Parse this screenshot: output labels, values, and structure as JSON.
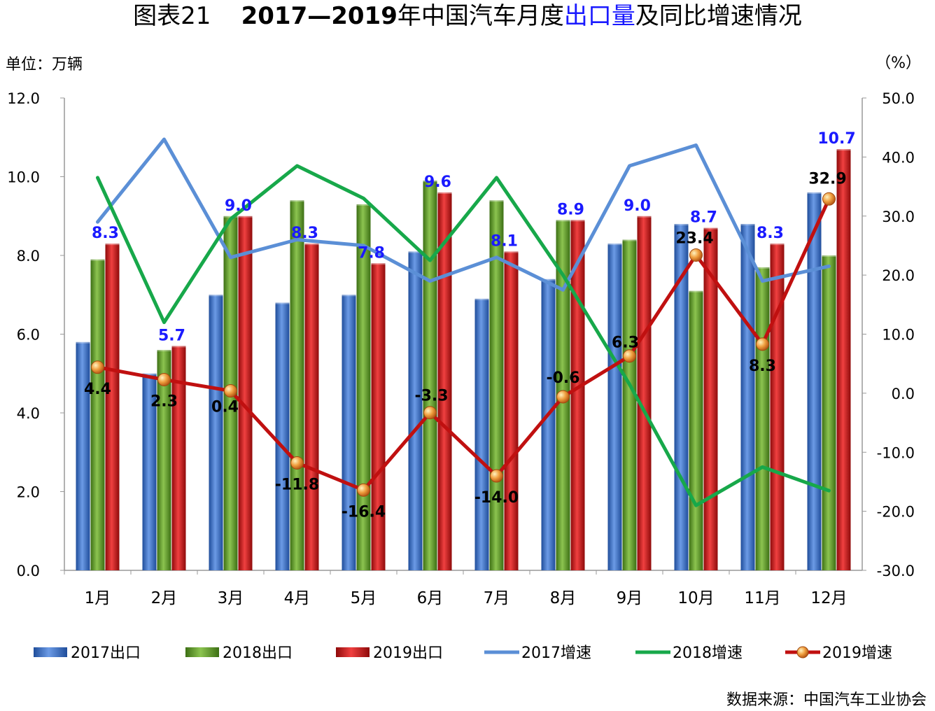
{
  "title": {
    "prefix": "图表21",
    "bold": "2017—2019",
    "mid": "年中国汽车月度",
    "highlight": "出口量",
    "suffix": "及同比增速情况"
  },
  "unit_left": "单位：万辆",
  "unit_right": "（%）",
  "source": "数据来源：中国汽车工业协会",
  "colors": {
    "bar2017": "#3a6fc4",
    "bar2018": "#5a9a2a",
    "bar2019": "#d01818",
    "line2017": "#5b8fd6",
    "line2018": "#17a84a",
    "line2019": "#c01010",
    "marker2019": "#e89a40",
    "label_blue": "#1a1aff"
  },
  "chart_data": {
    "type": "bar",
    "categories": [
      "1月",
      "2月",
      "3月",
      "4月",
      "5月",
      "6月",
      "7月",
      "8月",
      "9月",
      "10月",
      "11月",
      "12月"
    ],
    "y_left": {
      "min": 0,
      "max": 12,
      "step": 2,
      "ticks": [
        "0.0",
        "2.0",
        "4.0",
        "6.0",
        "8.0",
        "10.0",
        "12.0"
      ]
    },
    "y_right": {
      "min": -30,
      "max": 50,
      "step": 10,
      "ticks": [
        "-30.0",
        "-20.0",
        "-10.0",
        "0.0",
        "10.0",
        "20.0",
        "30.0",
        "40.0",
        "50.0"
      ]
    },
    "series": [
      {
        "name": "2017出口",
        "kind": "bar",
        "values": [
          5.8,
          5.0,
          7.0,
          6.8,
          7.0,
          8.1,
          6.9,
          7.4,
          8.3,
          8.8,
          8.8,
          9.6
        ]
      },
      {
        "name": "2018出口",
        "kind": "bar",
        "values": [
          7.9,
          5.6,
          9.0,
          9.4,
          9.3,
          9.9,
          9.4,
          8.9,
          8.4,
          7.1,
          7.7,
          8.0
        ]
      },
      {
        "name": "2019出口",
        "kind": "bar",
        "values": [
          8.3,
          5.7,
          9.0,
          8.3,
          7.8,
          9.6,
          8.1,
          8.9,
          9.0,
          8.7,
          8.3,
          10.7
        ],
        "labels": [
          "8.3",
          "5.7",
          "9.0",
          "8.3",
          "7.8",
          "9.6",
          "8.1",
          "8.9",
          "9.0",
          "8.7",
          "8.3",
          "10.7"
        ]
      },
      {
        "name": "2017增速",
        "kind": "line",
        "values": [
          29.0,
          43.0,
          23.0,
          26.0,
          25.0,
          19.0,
          23.0,
          17.5,
          38.5,
          42.0,
          19.0,
          21.5
        ]
      },
      {
        "name": "2018增速",
        "kind": "line",
        "values": [
          36.5,
          12.0,
          29.5,
          38.5,
          33.0,
          22.5,
          36.5,
          20.0,
          1.5,
          -19.0,
          -12.5,
          -16.5
        ]
      },
      {
        "name": "2019增速",
        "kind": "line",
        "values": [
          4.4,
          2.3,
          0.4,
          -11.8,
          -16.4,
          -3.3,
          -14.0,
          -0.6,
          6.3,
          23.4,
          8.3,
          32.9
        ],
        "labels": [
          "4.4",
          "2.3",
          "0.4",
          "-11.8",
          "-16.4",
          "-3.3",
          "-14.0",
          "-0.6",
          "6.3",
          "23.4",
          "8.3",
          "32.9"
        ]
      }
    ],
    "legend_position": "bottom"
  }
}
